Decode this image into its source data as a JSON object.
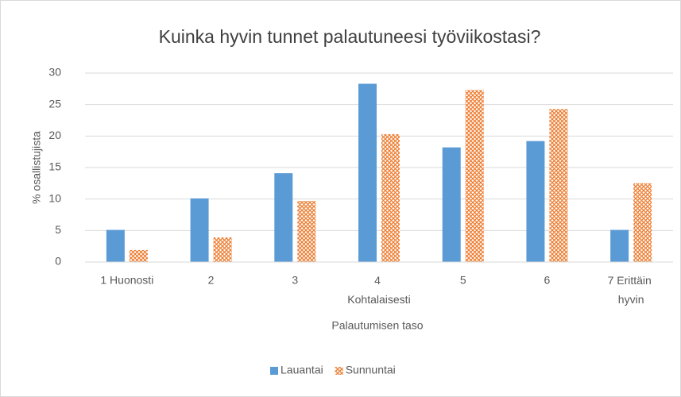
{
  "chart_data": {
    "type": "bar",
    "title": "Kuinka hyvin tunnet palautuneesi työviikostasi?",
    "x_label": "Palautumisen taso",
    "y_label": "% osallistujista",
    "categories": [
      "1 Huonosti",
      "2",
      "3",
      "4 Kohtalaisesti",
      "5",
      "6",
      "7 Erittäin hyvin"
    ],
    "series": [
      {
        "name": "Lauantai",
        "color": "#5b9bd5",
        "pattern": "solid",
        "values": [
          5.1,
          10.1,
          14.1,
          28.3,
          18.2,
          19.2,
          5.1
        ]
      },
      {
        "name": "Sunnuntai",
        "color": "#ed7d31",
        "pattern": "crosshatch",
        "values": [
          1.9,
          3.9,
          9.7,
          20.3,
          27.3,
          24.3,
          12.5
        ]
      }
    ],
    "ylim": [
      0,
      30
    ],
    "yticks": [
      0,
      5,
      10,
      15,
      20,
      25,
      30
    ],
    "grid": true,
    "legend": "bottom"
  }
}
